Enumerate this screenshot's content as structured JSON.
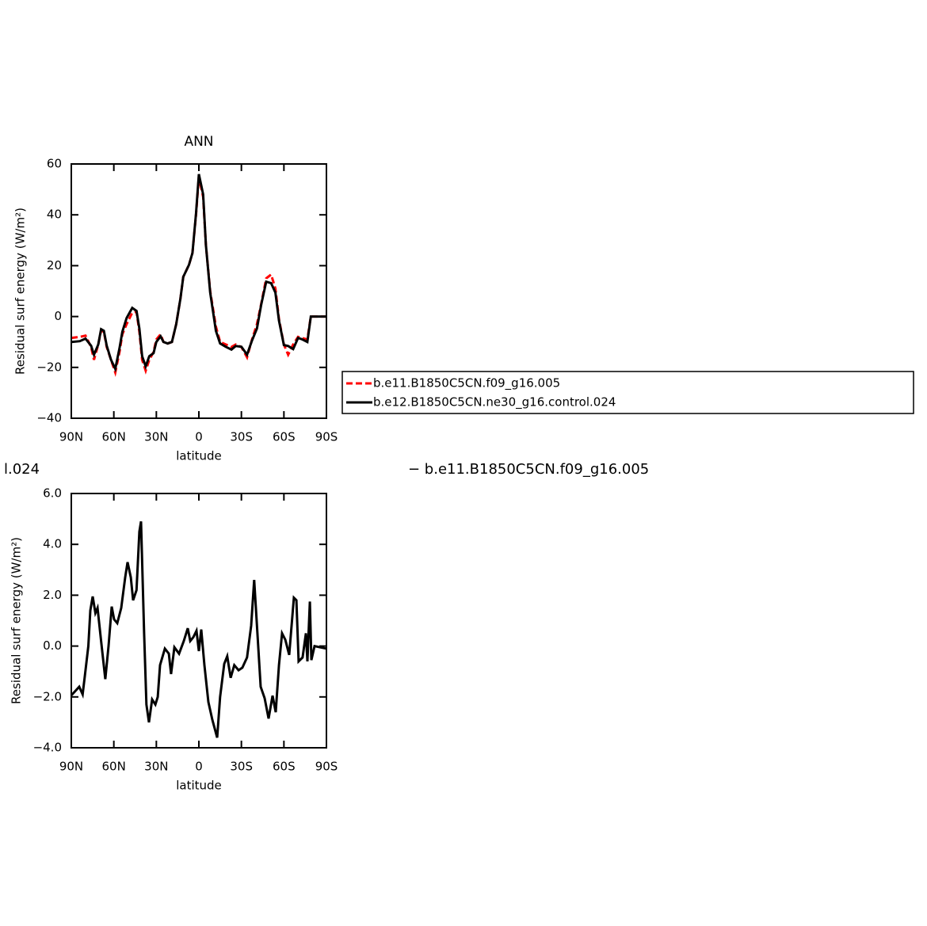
{
  "chart_data": [
    {
      "type": "line",
      "title": "ANN",
      "xlabel": "latitude",
      "ylabel": "Residual surf energy (W/m²)",
      "x": [
        90,
        84,
        80,
        76,
        74,
        71,
        69,
        67,
        65,
        62,
        59,
        56,
        54,
        51,
        47,
        44,
        42,
        40,
        37.5,
        35,
        32,
        30,
        27,
        25,
        22,
        19,
        16,
        13,
        11,
        7,
        4.5,
        2,
        0,
        -3,
        -5,
        -8,
        -12,
        -15,
        -19,
        -23,
        -26,
        -30,
        -34,
        -37.5,
        -41,
        -44,
        -47.5,
        -51,
        -54,
        -56.5,
        -60,
        -63,
        -66.5,
        -70,
        -73,
        -76.5,
        -79,
        -90
      ],
      "series": [
        {
          "name": "b.e11.B1850C5CN.f09_g16.005",
          "color": "#ff0000",
          "style": "dashed",
          "values": [
            -8.4,
            -8,
            -7.5,
            -12,
            -17,
            -11,
            -5.5,
            -6,
            -12,
            -17,
            -22,
            -14,
            -7,
            -3,
            1.5,
            1.9,
            -6,
            -17,
            -21.3,
            -17,
            -14,
            -9,
            -7,
            -10,
            -10.6,
            -10,
            -3,
            7,
            15.6,
            20.3,
            25,
            40,
            55,
            47,
            28,
            10,
            -4,
            -10,
            -11,
            -12,
            -11,
            -12,
            -16,
            -9,
            -3,
            5,
            15,
            16.5,
            11,
            -1,
            -11,
            -15,
            -11,
            -8,
            -8.5,
            -9,
            0,
            0
          ]
        },
        {
          "name": "b.e12.B1850C5CN.ne30_g16.control.024",
          "color": "#000000",
          "style": "solid",
          "values": [
            -10,
            -9.7,
            -8.7,
            -11.5,
            -15,
            -11,
            -5,
            -5.6,
            -11.5,
            -17,
            -20.6,
            -12.5,
            -6,
            -0.6,
            3.4,
            2.2,
            -4.7,
            -15.6,
            -19.6,
            -15.6,
            -14.4,
            -10,
            -7.8,
            -10,
            -10.6,
            -10,
            -3,
            7,
            15.6,
            20.3,
            25,
            40.5,
            56,
            48,
            28,
            9.4,
            -5.6,
            -10.6,
            -11.9,
            -13,
            -11.6,
            -11.9,
            -15,
            -9.4,
            -4.7,
            4.7,
            13.7,
            13.1,
            9.4,
            -1.6,
            -11.2,
            -11.6,
            -12.8,
            -8.4,
            -9,
            -10,
            0,
            0
          ]
        }
      ],
      "xlim": [
        90,
        -90
      ],
      "xticks": [
        {
          "value": 90,
          "label": "90N"
        },
        {
          "value": 60,
          "label": "60N"
        },
        {
          "value": 30,
          "label": "30N"
        },
        0,
        {
          "value": -30,
          "label": "30S"
        },
        {
          "value": -60,
          "label": "60S"
        },
        {
          "value": -90,
          "label": "90S"
        }
      ],
      "ylim": [
        -40,
        60
      ],
      "yticks": [
        {
          "value": -40,
          "label": "−40"
        },
        {
          "value": -20,
          "label": "−20"
        },
        0,
        20,
        40,
        60
      ],
      "legend": "right"
    },
    {
      "type": "line",
      "title": [
        "l.024",
        "− b.e11.B1850C5CN.f09_g16.005"
      ],
      "xlabel": "latitude",
      "ylabel": "Residual surf energy (W/m²)",
      "x": [
        90,
        84.4,
        82,
        80.5,
        78,
        76.6,
        74.9,
        73,
        71.5,
        69,
        66,
        63.7,
        61.5,
        59.8,
        57.6,
        54.8,
        52,
        50.3,
        48,
        46.4,
        44,
        42,
        40.8,
        38.6,
        37,
        35.2,
        33,
        30.7,
        29,
        27.4,
        24,
        21.2,
        19.6,
        17.3,
        14,
        10.6,
        7.8,
        6.1,
        3.9,
        1.7,
        0,
        -1.7,
        -3.9,
        -6.7,
        -9.5,
        -12.9,
        -15,
        -17.9,
        -20,
        -22.4,
        -25,
        -28,
        -30.7,
        -34,
        -36.9,
        -39,
        -41.3,
        -43.6,
        -46.4,
        -49.2,
        -52,
        -54.2,
        -56.5,
        -58.7,
        -61,
        -63.7,
        -67,
        -68.8,
        -70.4,
        -73.2,
        -75.5,
        -76.6,
        -78.3,
        -79.4,
        -81.6,
        -90
      ],
      "series": [
        {
          "color": "#000000",
          "style": "solid",
          "values": [
            -1.94,
            -1.6,
            -1.9,
            -1.2,
            0,
            1.4,
            1.95,
            1.3,
            1.5,
            0.2,
            -1.3,
            0,
            1.55,
            1.05,
            0.9,
            1.5,
            2.7,
            3.3,
            2.7,
            1.8,
            2.2,
            4.5,
            4.9,
            0.5,
            -2.3,
            -3,
            -2.1,
            -2.3,
            -2,
            -0.75,
            -0.1,
            -0.3,
            -1.1,
            -0.05,
            -0.3,
            0.2,
            0.7,
            0.2,
            0.35,
            0.6,
            -0.2,
            0.65,
            -0.75,
            -2.2,
            -2.9,
            -3.6,
            -2,
            -0.7,
            -0.4,
            -1.25,
            -0.75,
            -0.95,
            -0.85,
            -0.45,
            0.8,
            2.6,
            0.5,
            -1.6,
            -2.05,
            -2.85,
            -1.95,
            -2.6,
            -0.75,
            0.5,
            0.25,
            -0.35,
            1.9,
            1.8,
            -0.6,
            -0.45,
            0.5,
            -0.6,
            1.75,
            -0.55,
            0,
            -0.1
          ]
        }
      ],
      "xlim": [
        90,
        -90
      ],
      "xticks": [
        {
          "value": 90,
          "label": "90N"
        },
        {
          "value": 60,
          "label": "60N"
        },
        {
          "value": 30,
          "label": "30N"
        },
        0,
        {
          "value": -30,
          "label": "30S"
        },
        {
          "value": -60,
          "label": "60S"
        },
        {
          "value": -90,
          "label": "90S"
        }
      ],
      "ylim": [
        -4,
        6
      ],
      "yticks": [
        {
          "value": -4,
          "label": "−4.0"
        },
        {
          "value": -2,
          "label": "−2.0"
        },
        {
          "value": 0,
          "label": "0.0"
        },
        {
          "value": 2,
          "label": "2.0"
        },
        {
          "value": 4,
          "label": "4.0"
        },
        {
          "value": 6,
          "label": "6.0"
        }
      ]
    }
  ]
}
